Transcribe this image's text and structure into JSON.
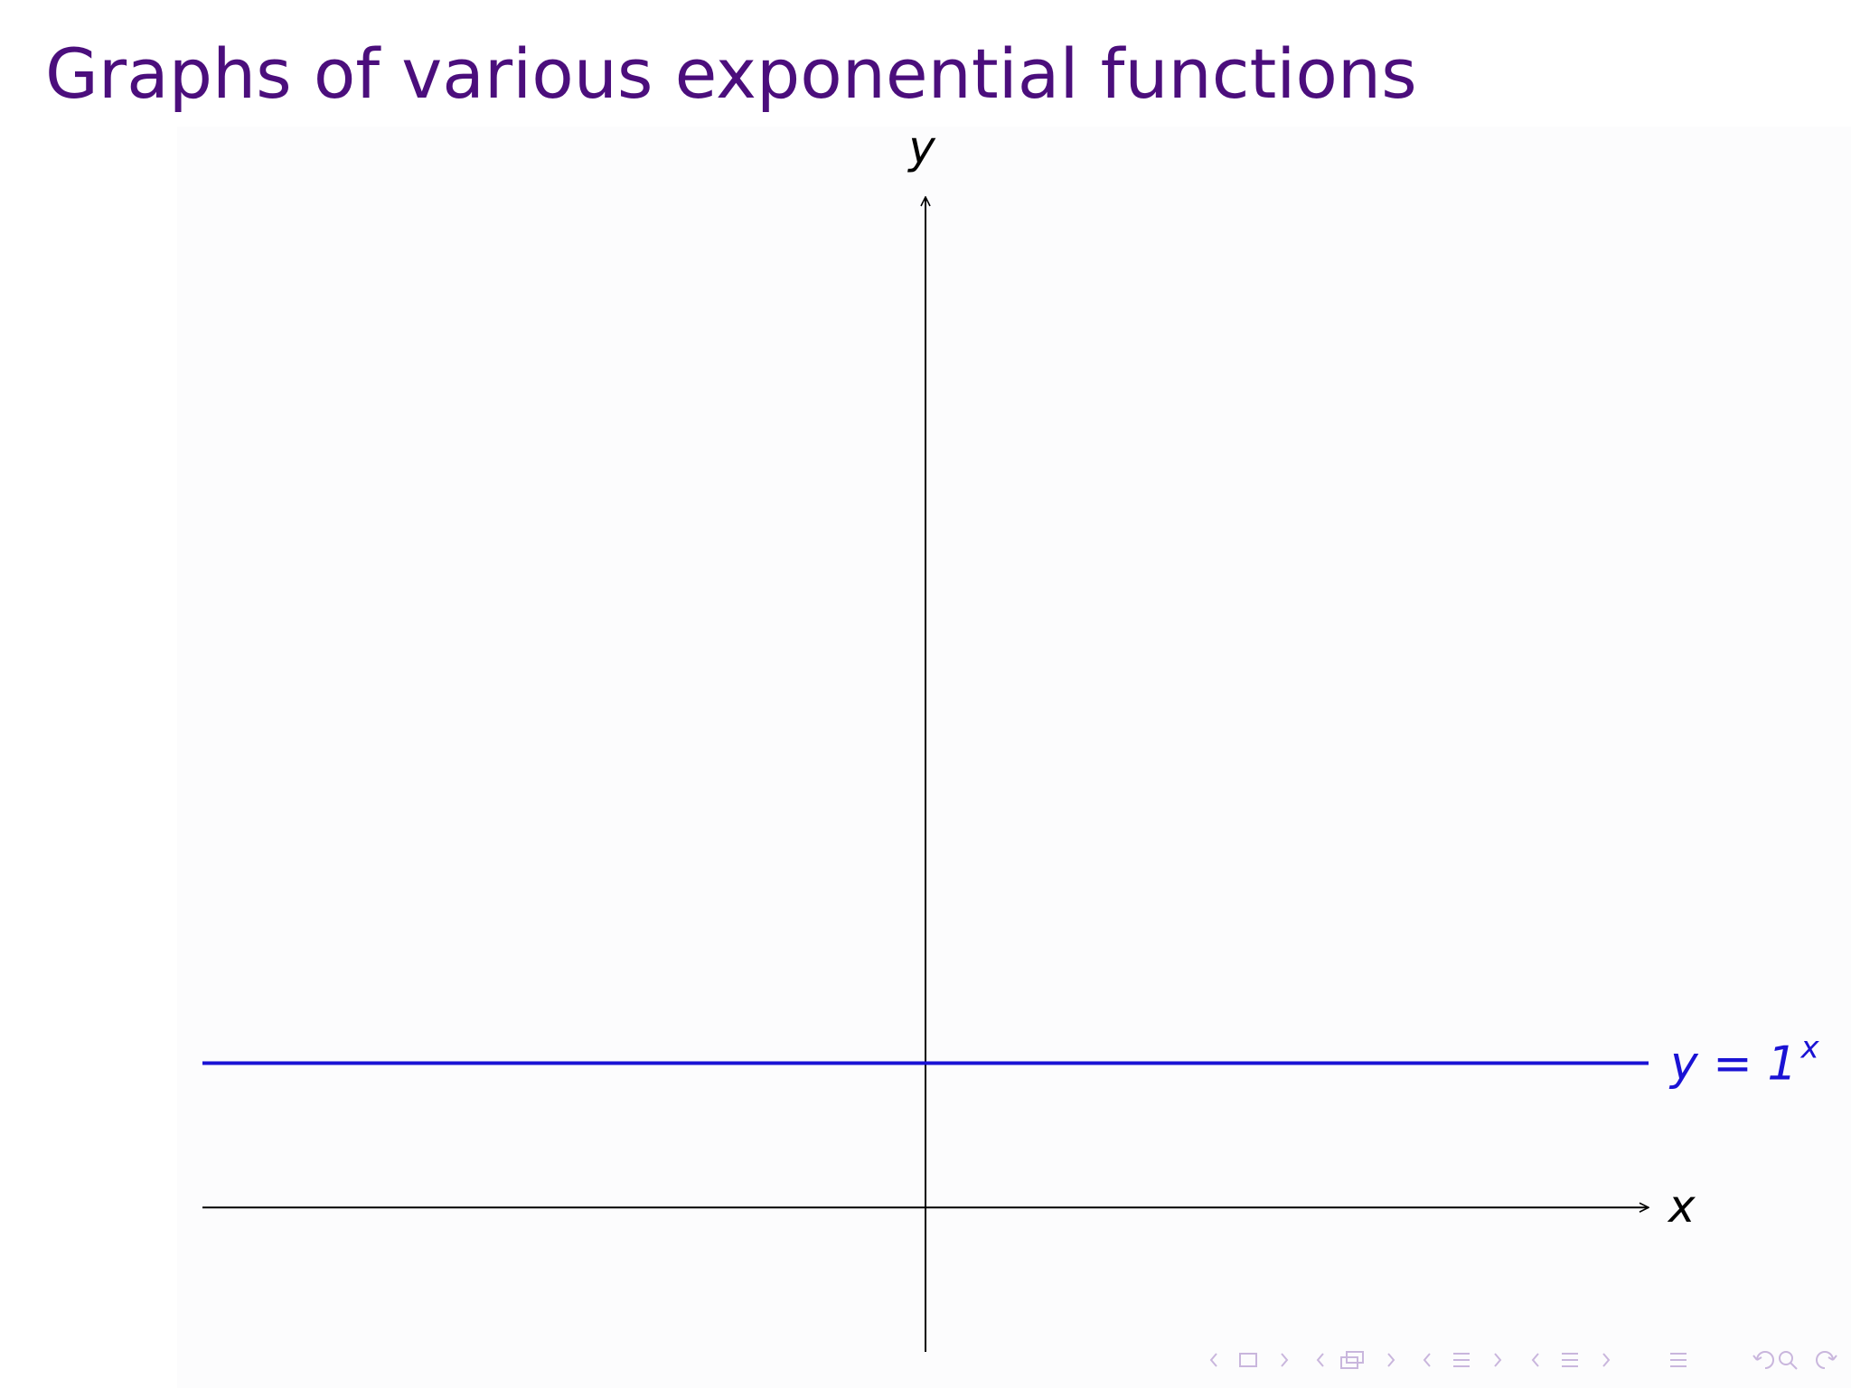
{
  "slide": {
    "title": "Graphs of various exponential functions"
  },
  "colors": {
    "title": "#4b0e7c",
    "curve": "#1a12d4",
    "axes": "#000000",
    "nav": "#c9b6dd"
  },
  "chart_data": {
    "type": "line",
    "title": "",
    "xlabel": "x",
    "ylabel": "y",
    "xlim": [
      -5,
      5
    ],
    "ylim": [
      -1,
      7
    ],
    "grid": false,
    "x_ticks": [],
    "y_ticks": [],
    "series": [
      {
        "name": "y = 1^x",
        "label_base": "y = 1",
        "label_exp": "x",
        "function": "1^x",
        "color": "#1a12d4",
        "x": [
          -5,
          -4,
          -3,
          -2,
          -1,
          0,
          1,
          2,
          3,
          4,
          5
        ],
        "y": [
          1,
          1,
          1,
          1,
          1,
          1,
          1,
          1,
          1,
          1,
          1
        ]
      }
    ]
  },
  "nav_icons": [
    "arrow-left-icon",
    "frame-icon",
    "arrow-right-icon",
    "arrow-left-icon",
    "subsection-icon",
    "arrow-right-icon",
    "arrow-left-icon",
    "section-icon",
    "arrow-right-icon",
    "arrow-left-icon",
    "section-icon",
    "arrow-right-icon",
    "align-icon",
    "undo-icon",
    "search-icon",
    "redo-icon"
  ]
}
